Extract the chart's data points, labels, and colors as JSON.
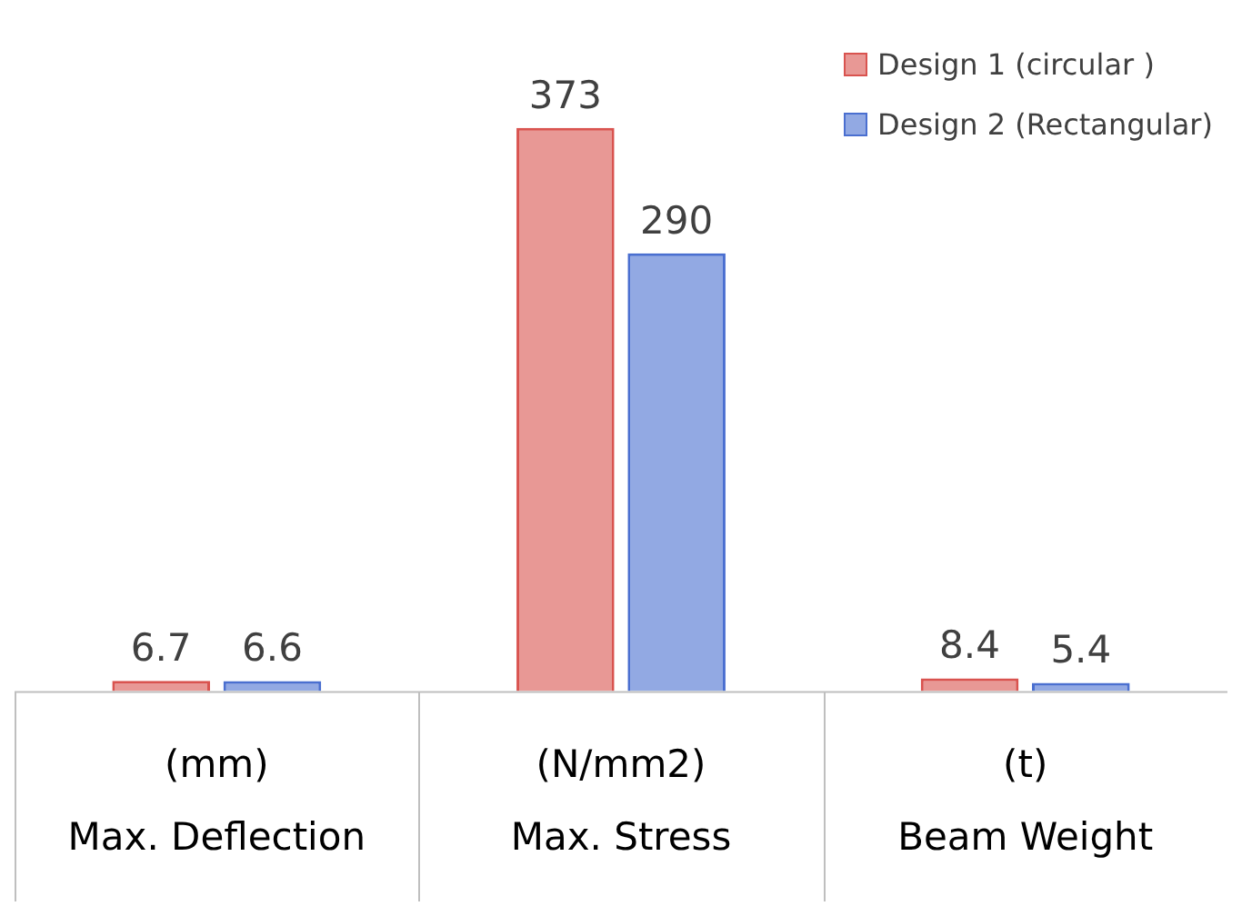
{
  "chart_data": {
    "type": "bar",
    "categories": [
      "(mm)\nMax. Deflection",
      "(N/mm2)\nMax. Stress",
      "(t)\nBeam Weight"
    ],
    "series": [
      {
        "name": "Design 1 (circular )",
        "color": "#d9534f",
        "values": [
          6.7,
          373,
          8.4
        ]
      },
      {
        "name": "Design 2 (Rectangular)",
        "color": "#4a6fd0",
        "values": [
          6.6,
          290,
          5.4
        ]
      }
    ],
    "data_labels": true,
    "legend": "top right"
  }
}
